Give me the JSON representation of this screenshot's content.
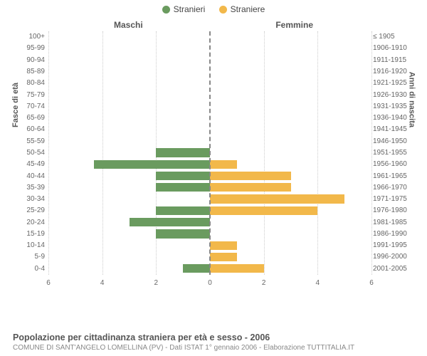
{
  "legend": {
    "male": {
      "label": "Stranieri",
      "color": "#6a9b5f"
    },
    "female": {
      "label": "Straniere",
      "color": "#f2b84a"
    }
  },
  "chart": {
    "type": "bar",
    "title_left": "Maschi",
    "title_right": "Femmine",
    "y_label_left": "Fasce di età",
    "y_label_right": "Anni di nascita",
    "x_max": 6,
    "x_ticks": [
      6,
      4,
      2,
      0,
      2,
      4,
      6
    ],
    "grid_color": "#cccccc",
    "center_line_color": "#888888",
    "background_color": "#ffffff",
    "label_fontsize": 10,
    "rows": [
      {
        "age": "100+",
        "birth": "≤ 1905",
        "m": 0,
        "f": 0
      },
      {
        "age": "95-99",
        "birth": "1906-1910",
        "m": 0,
        "f": 0
      },
      {
        "age": "90-94",
        "birth": "1911-1915",
        "m": 0,
        "f": 0
      },
      {
        "age": "85-89",
        "birth": "1916-1920",
        "m": 0,
        "f": 0
      },
      {
        "age": "80-84",
        "birth": "1921-1925",
        "m": 0,
        "f": 0
      },
      {
        "age": "75-79",
        "birth": "1926-1930",
        "m": 0,
        "f": 0
      },
      {
        "age": "70-74",
        "birth": "1931-1935",
        "m": 0,
        "f": 0
      },
      {
        "age": "65-69",
        "birth": "1936-1940",
        "m": 0,
        "f": 0
      },
      {
        "age": "60-64",
        "birth": "1941-1945",
        "m": 0,
        "f": 0
      },
      {
        "age": "55-59",
        "birth": "1946-1950",
        "m": 0,
        "f": 0
      },
      {
        "age": "50-54",
        "birth": "1951-1955",
        "m": 2,
        "f": 0
      },
      {
        "age": "45-49",
        "birth": "1956-1960",
        "m": 4.3,
        "f": 1
      },
      {
        "age": "40-44",
        "birth": "1961-1965",
        "m": 2,
        "f": 3
      },
      {
        "age": "35-39",
        "birth": "1966-1970",
        "m": 2,
        "f": 3
      },
      {
        "age": "30-34",
        "birth": "1971-1975",
        "m": 0,
        "f": 5
      },
      {
        "age": "25-29",
        "birth": "1976-1980",
        "m": 2,
        "f": 4
      },
      {
        "age": "20-24",
        "birth": "1981-1985",
        "m": 3,
        "f": 0
      },
      {
        "age": "15-19",
        "birth": "1986-1990",
        "m": 2,
        "f": 0
      },
      {
        "age": "10-14",
        "birth": "1991-1995",
        "m": 0,
        "f": 1
      },
      {
        "age": "5-9",
        "birth": "1996-2000",
        "m": 0,
        "f": 1
      },
      {
        "age": "0-4",
        "birth": "2001-2005",
        "m": 1,
        "f": 2
      }
    ]
  },
  "footer": {
    "line1": "Popolazione per cittadinanza straniera per età e sesso - 2006",
    "line2": "COMUNE DI SANT'ANGELO LOMELLINA (PV) - Dati ISTAT 1° gennaio 2006 - Elaborazione TUTTITALIA.IT"
  }
}
